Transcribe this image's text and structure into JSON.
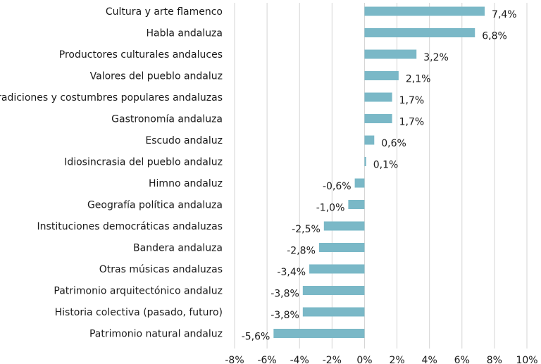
{
  "chart_data": {
    "type": "bar",
    "orientation": "horizontal",
    "categories": [
      "Cultura y arte flamenco",
      "Habla andaluza",
      "Productores culturales andaluces",
      "Valores del pueblo andaluz",
      "Tradiciones y costumbres populares andaluzas",
      "Gastronomía andaluza",
      "Escudo andaluz",
      "Idiosincrasia del pueblo andaluz",
      "Himno andaluz",
      "Geografía política andaluza",
      "Instituciones democráticas andaluzas",
      "Bandera andaluza",
      "Otras músicas andaluzas",
      "Patrimonio arquitectónico andaluz",
      "Historia colectiva (pasado, futuro)",
      "Patrimonio natural andaluz"
    ],
    "values": [
      7.4,
      6.8,
      3.2,
      2.1,
      1.7,
      1.7,
      0.6,
      0.1,
      -0.6,
      -1.0,
      -2.5,
      -2.8,
      -3.4,
      -3.8,
      -3.8,
      -5.6
    ],
    "value_labels": [
      "7,4%",
      "6,8%",
      "3,2%",
      "2,1%",
      "1,7%",
      "1,7%",
      "0,6%",
      "0,1%",
      "-0,6%",
      "-1,0%",
      "-2,5%",
      "-2,8%",
      "-3,4%",
      "-3,8%",
      "-3,8%",
      "-5,6%"
    ],
    "xlim": [
      -8,
      10
    ],
    "x_ticks": [
      -8,
      -6,
      -4,
      -2,
      0,
      2,
      4,
      6,
      8,
      10
    ],
    "x_tick_labels": [
      "-8%",
      "-6%",
      "-4%",
      "-2%",
      "0%",
      "2%",
      "4%",
      "6%",
      "8%",
      "10%"
    ],
    "title": "",
    "xlabel": "",
    "ylabel": "",
    "grid": "vertical",
    "colors": {
      "bar": "#7ab8c7",
      "grid": "#d4d4d4",
      "text": "#1a1a1a"
    }
  }
}
